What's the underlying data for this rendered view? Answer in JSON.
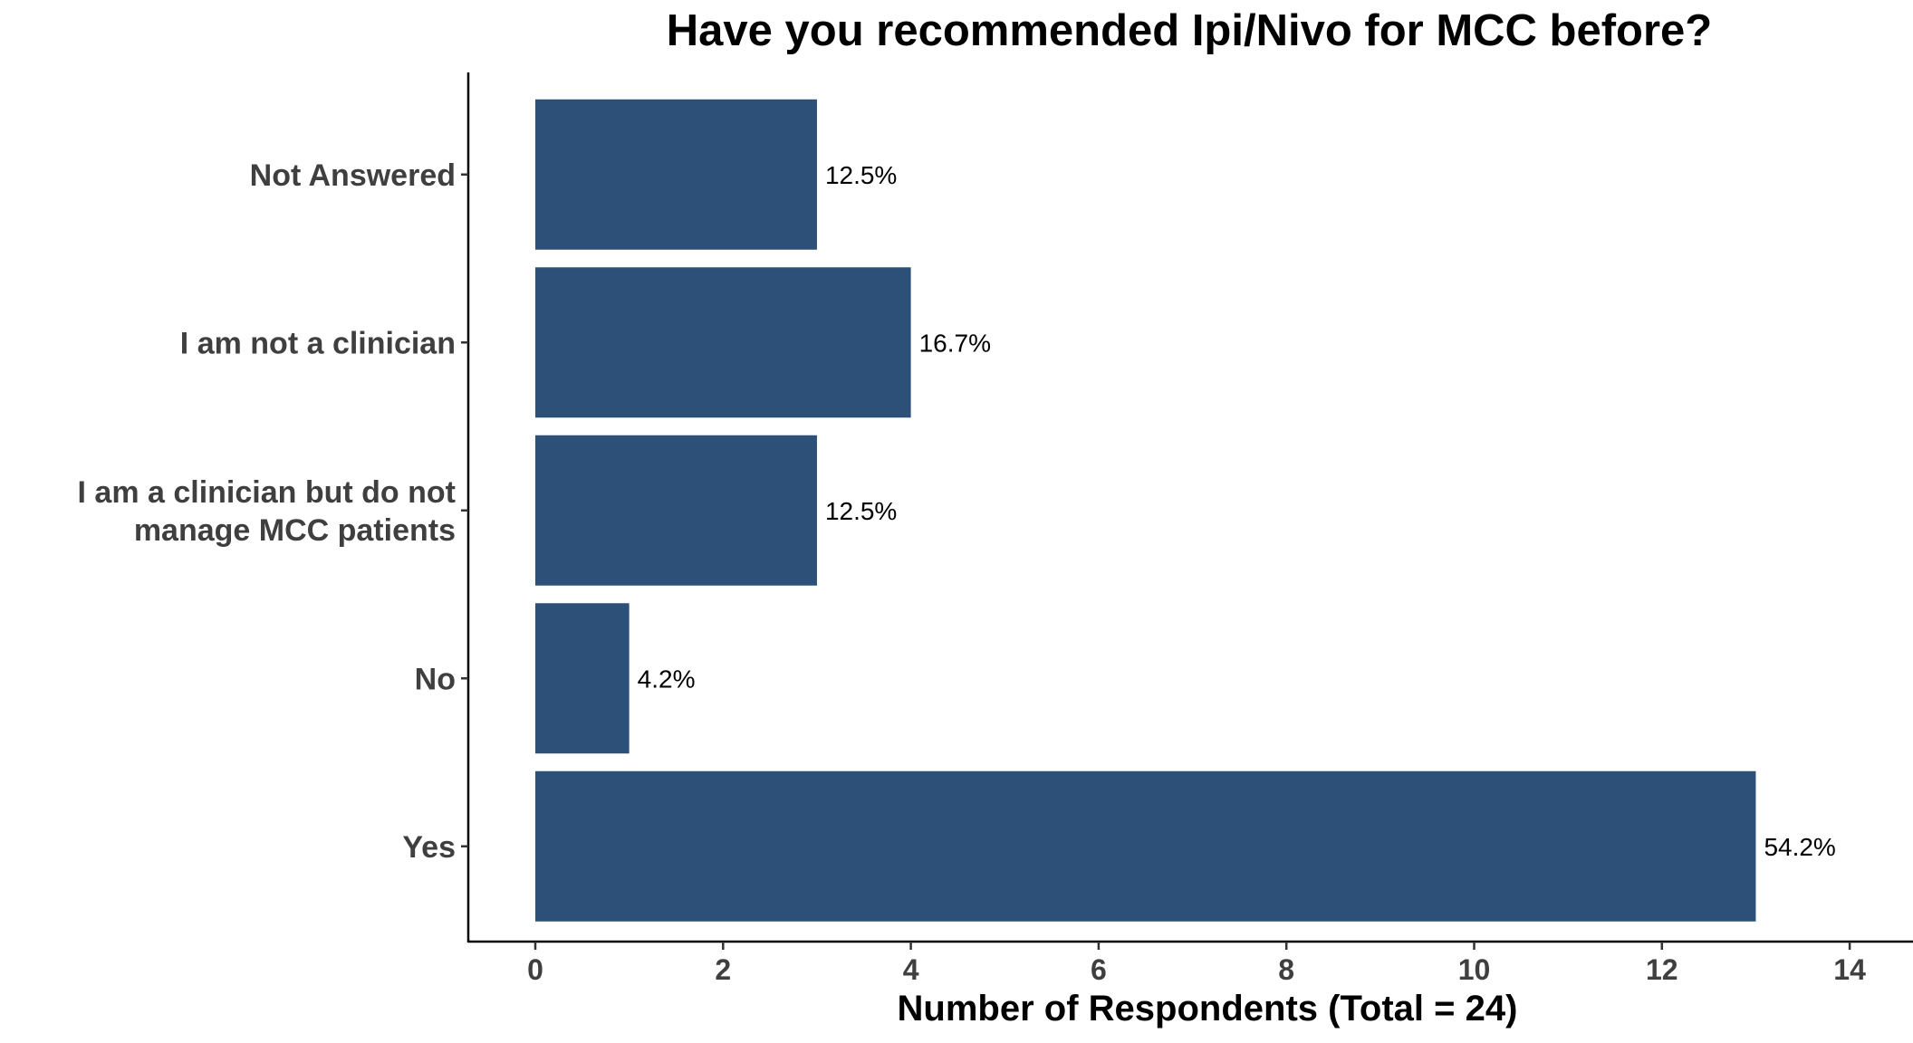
{
  "chart_data": {
    "type": "bar",
    "orientation": "horizontal",
    "title": "Have you recommended Ipi/Nivo for MCC before?",
    "xlabel": "Number of Respondents (Total = 24)",
    "ylabel": "",
    "categories": [
      "Not Answered",
      "I am not a clinician",
      "I am a clinician but do not manage MCC patients",
      "No",
      "Yes"
    ],
    "category_label_lines": [
      [
        "Not Answered"
      ],
      [
        "I am not a clinician"
      ],
      [
        "I am a clinician but do not",
        "manage MCC patients"
      ],
      [
        "No"
      ],
      [
        "Yes"
      ]
    ],
    "values": [
      3,
      4,
      3,
      1,
      13
    ],
    "data_labels": [
      "12.5%",
      "16.7%",
      "12.5%",
      "4.2%",
      "54.2%"
    ],
    "xlim": [
      0,
      14
    ],
    "xticks": [
      0,
      2,
      4,
      6,
      8,
      10,
      12,
      14
    ],
    "tick_labels": [
      "0",
      "2",
      "4",
      "6",
      "8",
      "10",
      "12",
      "14"
    ],
    "bar_color": "#2c5077",
    "grid": false,
    "legend": "none"
  }
}
